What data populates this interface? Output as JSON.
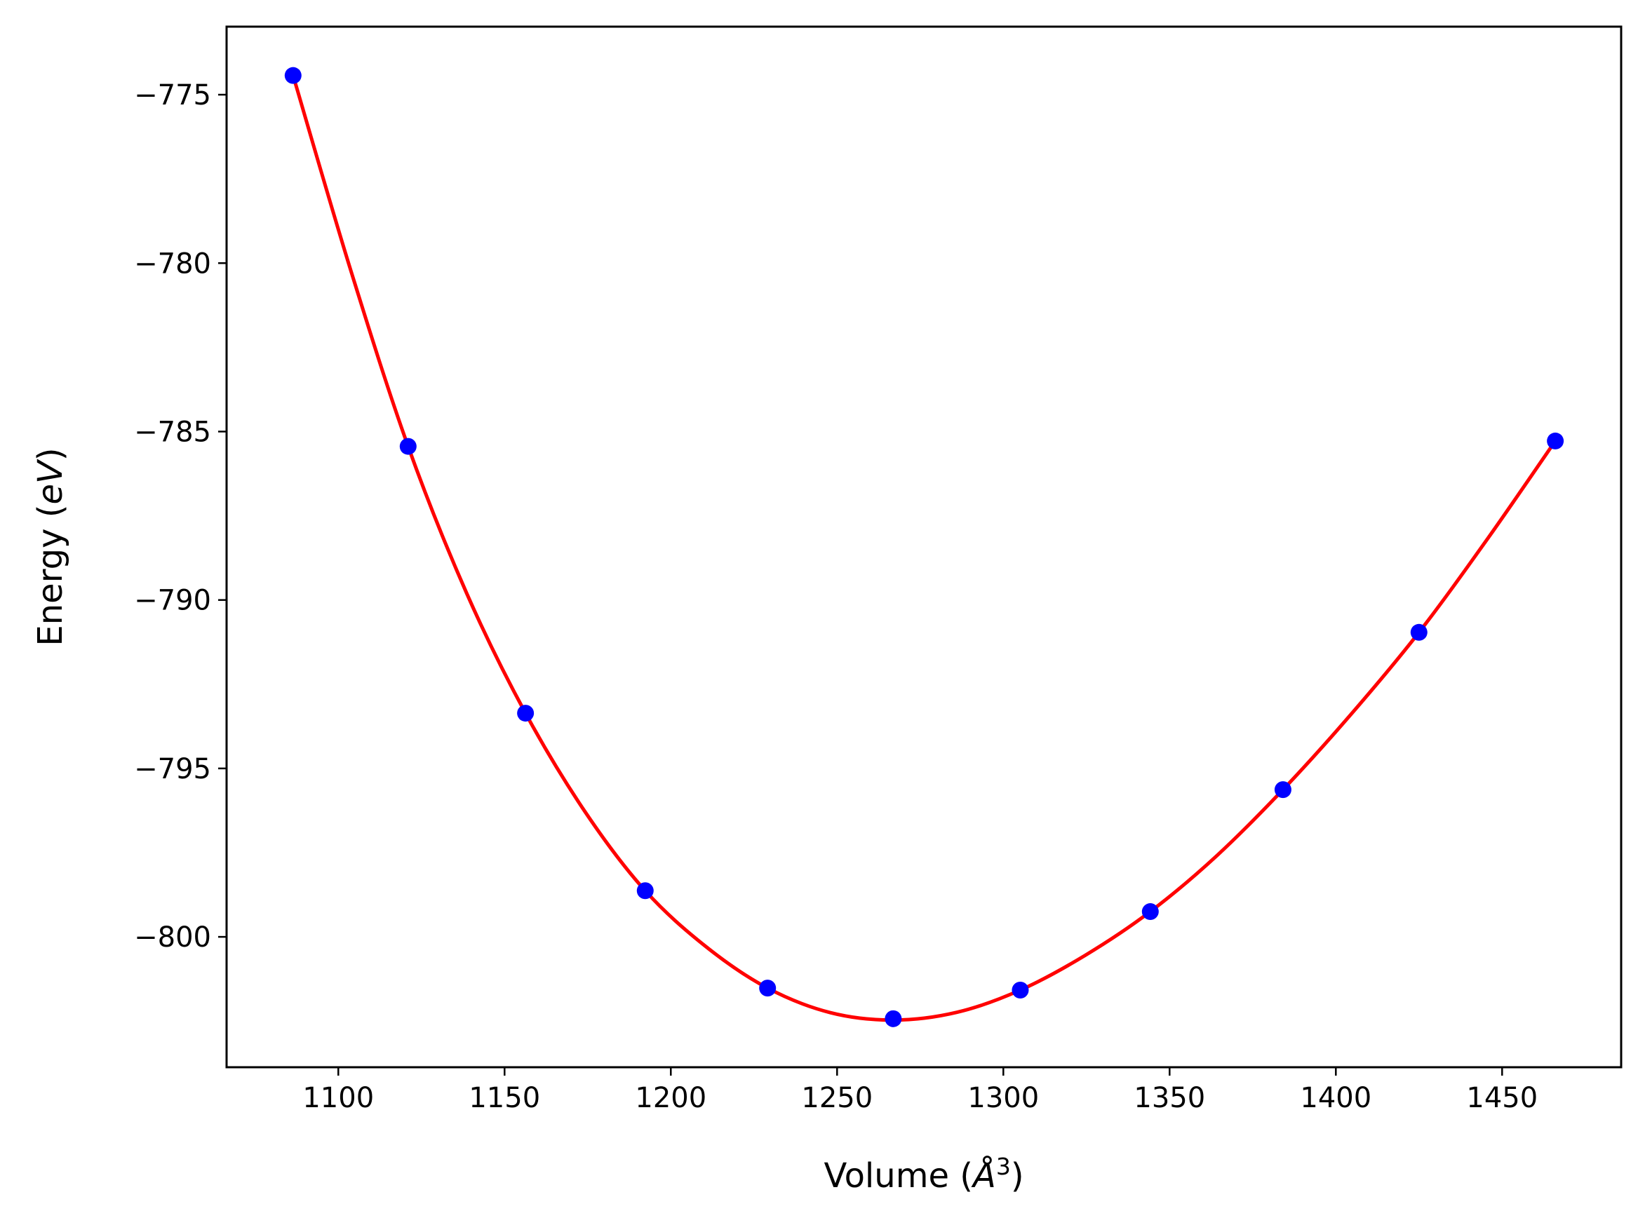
{
  "chart_data": {
    "type": "scatter",
    "xlabel_parts": {
      "pre": "Volume (",
      "symbol": "Å",
      "sup": "3",
      "post": ")"
    },
    "ylabel_parts": {
      "pre": "Energy (",
      "unit": "eV",
      "post": ")"
    },
    "xlim": [
      1066.4,
      1485.8
    ],
    "ylim": [
      -803.87,
      -772.98
    ],
    "xticks": [
      1100,
      1150,
      1200,
      1250,
      1300,
      1350,
      1400,
      1450
    ],
    "yticks": [
      -775,
      -780,
      -785,
      -790,
      -795,
      -800
    ],
    "xtick_labels": [
      "1100",
      "1150",
      "1200",
      "1250",
      "1300",
      "1350",
      "1400",
      "1450"
    ],
    "ytick_labels": [
      "−775",
      "−780",
      "−785",
      "−790",
      "−795",
      "−800"
    ],
    "grid": false,
    "series": [
      {
        "kind": "points",
        "color": "#0000ff",
        "x": [
          1086.4,
          1121.0,
          1156.3,
          1192.3,
          1229.1,
          1266.9,
          1305.1,
          1344.2,
          1384.1,
          1425.0,
          1466.0
        ],
        "y": [
          -774.43,
          -785.44,
          -793.36,
          -798.63,
          -801.52,
          -802.43,
          -801.58,
          -799.25,
          -795.63,
          -790.96,
          -785.28
        ]
      },
      {
        "kind": "fit-line",
        "color": "#ff0000",
        "x": [
          1086.4,
          1103.7,
          1121.0,
          1138.6,
          1156.3,
          1174.3,
          1192.3,
          1210.7,
          1229.1,
          1248.0,
          1266.9,
          1286.0,
          1305.1,
          1324.6,
          1344.2,
          1364.1,
          1384.1,
          1404.5,
          1425.0,
          1445.5,
          1466.0
        ],
        "y": [
          -774.43,
          -780.2,
          -785.44,
          -789.8,
          -793.36,
          -796.3,
          -798.63,
          -800.3,
          -801.52,
          -802.25,
          -802.47,
          -802.24,
          -801.58,
          -800.55,
          -799.25,
          -797.6,
          -795.63,
          -793.4,
          -790.96,
          -788.2,
          -785.28
        ]
      }
    ]
  }
}
